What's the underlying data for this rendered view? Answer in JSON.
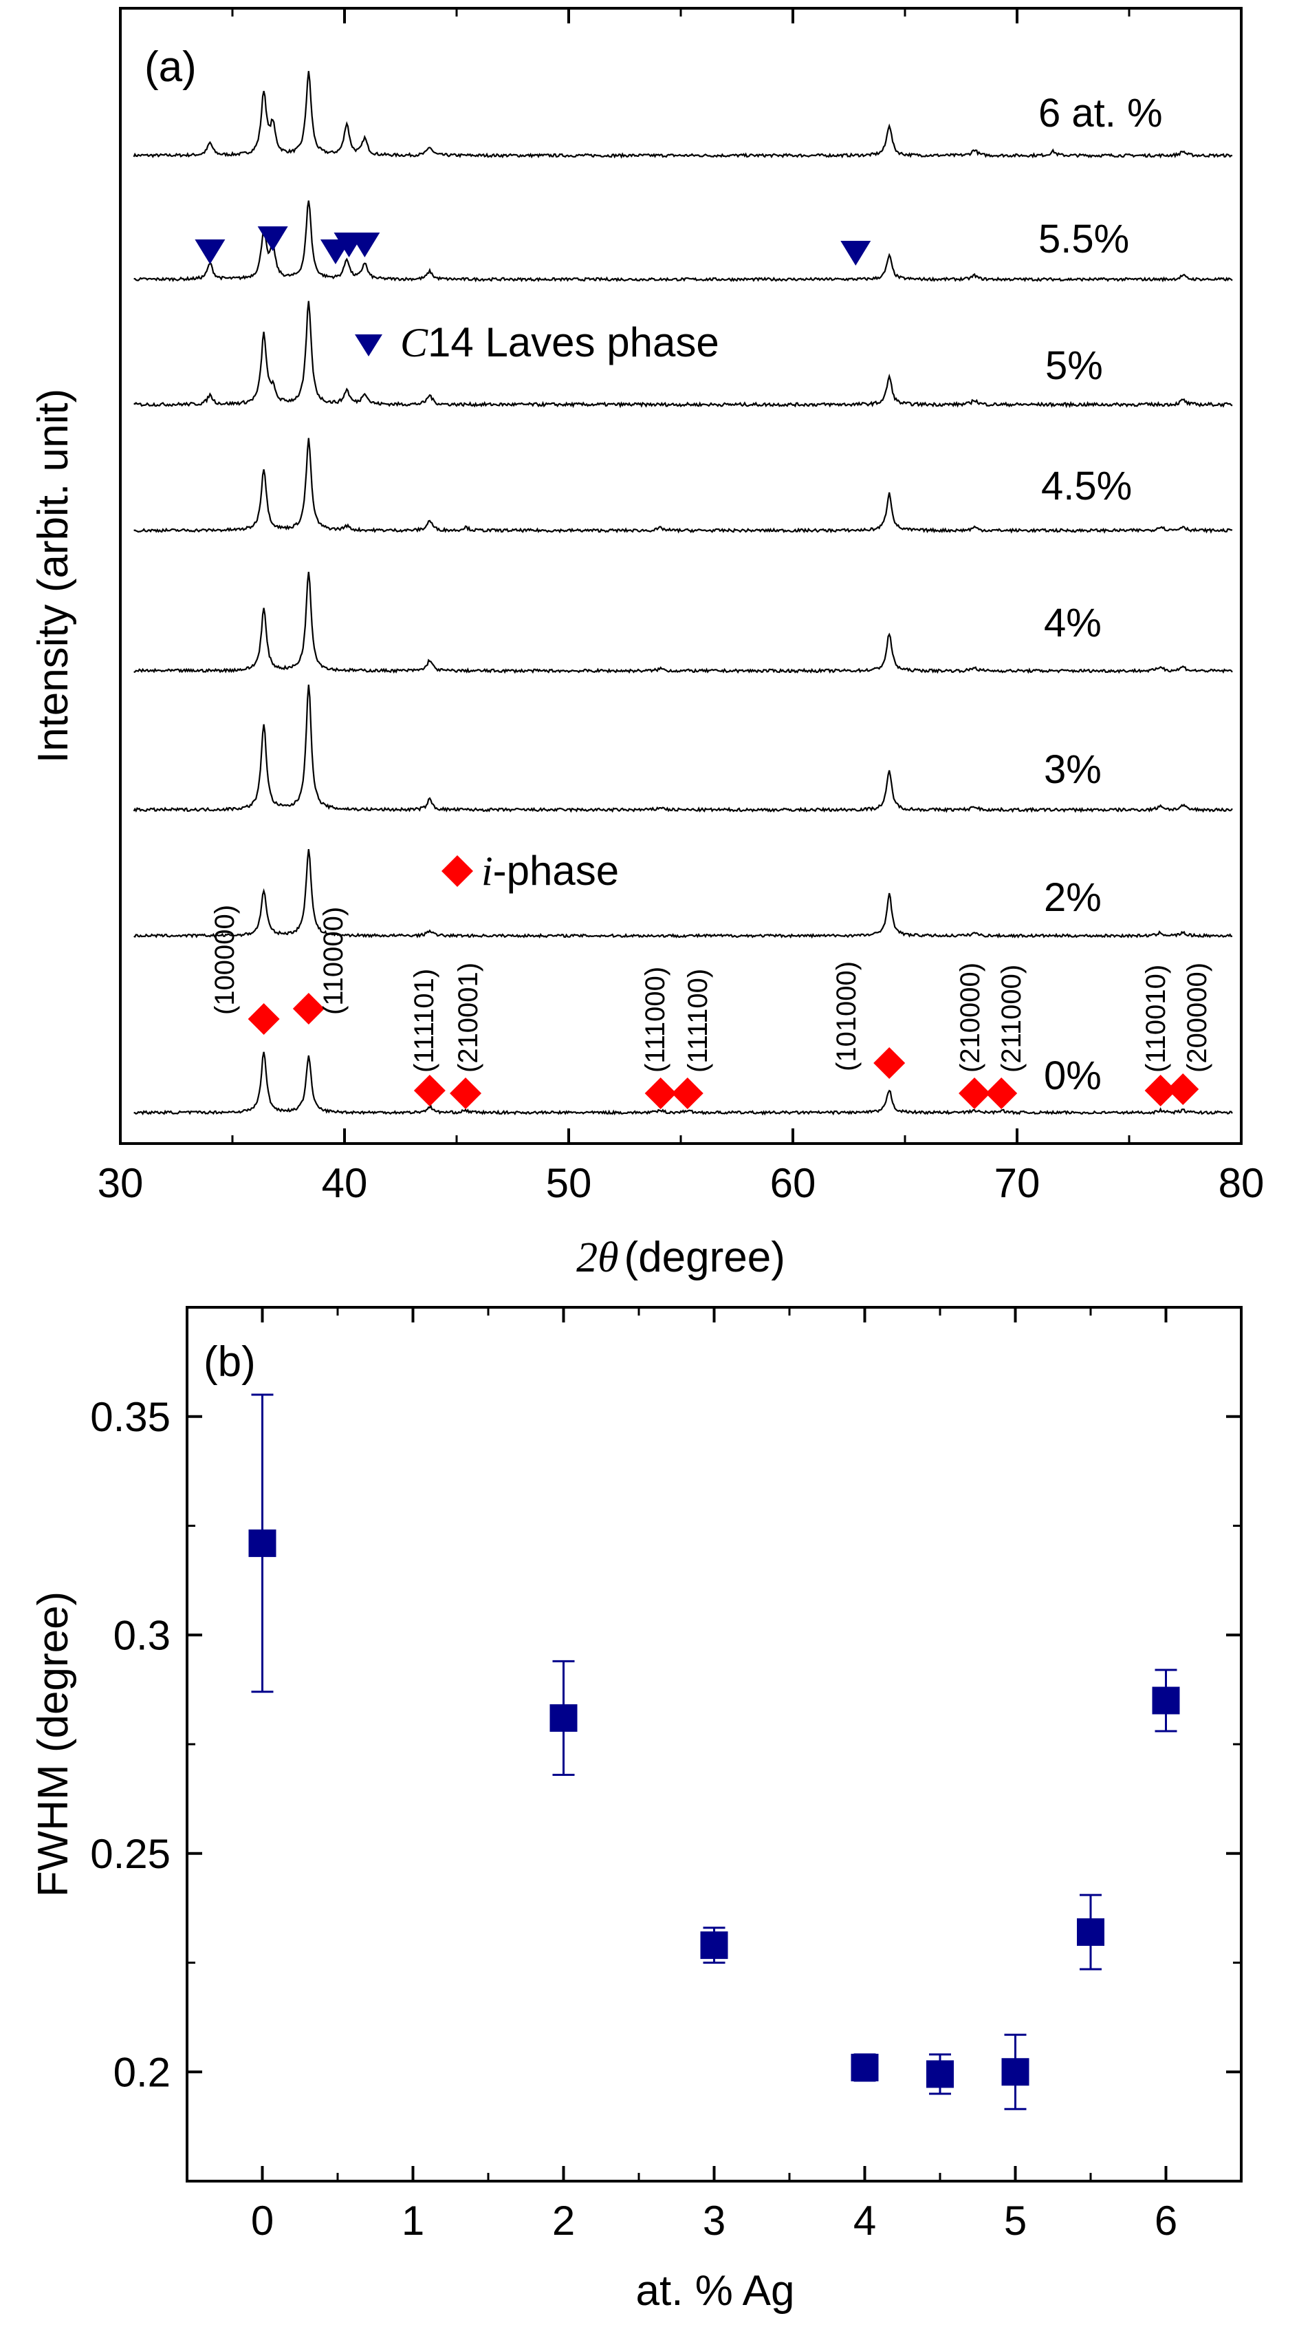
{
  "colors": {
    "ag_trace": "#000000",
    "i_phase_marker": "#ff0000",
    "laves_marker": "#00008b",
    "fwhm_marker": "#00008b"
  },
  "chart_data": [
    {
      "type": "line",
      "panel": "(a)",
      "xlabel_var": "2θ",
      "xlabel_unit": "(degree)",
      "ylabel": "Intensity (arbit. unit)",
      "xlim": [
        30,
        80
      ],
      "x_ticks": [
        30,
        40,
        50,
        60,
        70,
        80
      ],
      "y_ticks": false,
      "series": [
        {
          "name": "6 at. %",
          "peaks": [
            [
              34.0,
              0.15
            ],
            [
              36.4,
              0.75
            ],
            [
              36.8,
              0.35
            ],
            [
              38.4,
              1.0
            ],
            [
              40.1,
              0.38
            ],
            [
              40.9,
              0.2
            ],
            [
              43.8,
              0.1
            ],
            [
              64.3,
              0.37
            ],
            [
              68.1,
              0.07
            ],
            [
              71.6,
              0.05
            ],
            [
              77.4,
              0.05
            ]
          ]
        },
        {
          "name": "5.5%",
          "peaks": [
            [
              34.0,
              0.2
            ],
            [
              36.4,
              0.6
            ],
            [
              36.8,
              0.38
            ],
            [
              38.4,
              1.0
            ],
            [
              40.1,
              0.25
            ],
            [
              40.9,
              0.2
            ],
            [
              43.8,
              0.1
            ],
            [
              64.3,
              0.3
            ],
            [
              68.1,
              0.05
            ],
            [
              77.4,
              0.05
            ]
          ]
        },
        {
          "name": "5%",
          "peaks": [
            [
              34.0,
              0.1
            ],
            [
              36.4,
              0.75
            ],
            [
              36.8,
              0.15
            ],
            [
              38.4,
              1.1
            ],
            [
              40.1,
              0.15
            ],
            [
              40.9,
              0.12
            ],
            [
              43.8,
              0.1
            ],
            [
              64.3,
              0.3
            ],
            [
              68.1,
              0.05
            ],
            [
              77.4,
              0.05
            ]
          ]
        },
        {
          "name": "4.5%",
          "peaks": [
            [
              36.4,
              0.75
            ],
            [
              38.4,
              1.1
            ],
            [
              40.1,
              0.05
            ],
            [
              43.8,
              0.12
            ],
            [
              45.4,
              0.04
            ],
            [
              54.1,
              0.03
            ],
            [
              64.3,
              0.45
            ],
            [
              68.1,
              0.04
            ],
            [
              76.4,
              0.05
            ],
            [
              77.4,
              0.05
            ]
          ]
        },
        {
          "name": "4%",
          "peaks": [
            [
              36.4,
              0.75
            ],
            [
              38.4,
              1.2
            ],
            [
              43.8,
              0.13
            ],
            [
              54.1,
              0.03
            ],
            [
              64.3,
              0.45
            ],
            [
              68.1,
              0.04
            ],
            [
              76.4,
              0.05
            ],
            [
              77.4,
              0.05
            ]
          ]
        },
        {
          "name": "3%",
          "peaks": [
            [
              36.4,
              1.0
            ],
            [
              38.4,
              1.45
            ],
            [
              43.8,
              0.12
            ],
            [
              54.1,
              0.03
            ],
            [
              64.3,
              0.45
            ],
            [
              68.1,
              0.04
            ],
            [
              76.4,
              0.05
            ],
            [
              77.4,
              0.05
            ]
          ]
        },
        {
          "name": "2%",
          "peaks": [
            [
              36.4,
              0.6
            ],
            [
              38.4,
              1.15
            ],
            [
              43.8,
              0.07
            ],
            [
              64.3,
              0.55
            ],
            [
              68.1,
              0.04
            ],
            [
              76.4,
              0.04
            ],
            [
              77.4,
              0.04
            ]
          ]
        },
        {
          "name": "0%",
          "peaks": [
            [
              36.4,
              0.8
            ],
            [
              38.4,
              0.75
            ],
            [
              43.8,
              0.08
            ],
            [
              45.4,
              0.03
            ],
            [
              54.1,
              0.03
            ],
            [
              55.3,
              0.03
            ],
            [
              64.3,
              0.3
            ],
            [
              68.1,
              0.03
            ],
            [
              69.3,
              0.03
            ],
            [
              76.4,
              0.03
            ],
            [
              77.4,
              0.03
            ]
          ]
        }
      ],
      "legend_i_phase_var": "i",
      "legend_i_phase_suffix": "-phase",
      "legend_laves_var": "C",
      "legend_laves_suffix": "14 Laves phase",
      "laves_markers_5_5": [
        34.0,
        36.8,
        39.6,
        40.2,
        40.9,
        62.8
      ],
      "i_phase_markers_0": [
        {
          "x": 36.4,
          "hkl": "(100000)"
        },
        {
          "x": 38.4,
          "hkl": "(110000)"
        },
        {
          "x": 43.8,
          "hkl": "(111101)"
        },
        {
          "x": 45.4,
          "hkl": "(210001)"
        },
        {
          "x": 54.1,
          "hkl": "(111000)"
        },
        {
          "x": 55.3,
          "hkl": "(111100)"
        },
        {
          "x": 64.3,
          "hkl": "(101000)"
        },
        {
          "x": 68.1,
          "hkl": "(210000)"
        },
        {
          "x": 69.3,
          "hkl": "(211000)"
        },
        {
          "x": 76.4,
          "hkl": "(110010)"
        },
        {
          "x": 77.4,
          "hkl": "(200000)"
        }
      ]
    },
    {
      "type": "scatter",
      "panel": "(b)",
      "xlabel": "at. % Ag",
      "ylabel": "FWHM (degree)",
      "xlim": [
        -0.5,
        6.5
      ],
      "ylim": [
        0.175,
        0.375
      ],
      "x_ticks": [
        0,
        1,
        2,
        3,
        4,
        5,
        6
      ],
      "y_ticks": [
        0.2,
        0.25,
        0.3,
        0.35
      ],
      "y_tick_labels": [
        "0.2",
        "0.25",
        "0.3",
        "0.35"
      ],
      "points": [
        {
          "x": 0,
          "y": 0.321,
          "err": 0.034
        },
        {
          "x": 2,
          "y": 0.281,
          "err": 0.013
        },
        {
          "x": 3,
          "y": 0.229,
          "err": 0.004
        },
        {
          "x": 4,
          "y": 0.201,
          "err": 0.003
        },
        {
          "x": 4.5,
          "y": 0.1995,
          "err": 0.0045
        },
        {
          "x": 5,
          "y": 0.2,
          "err": 0.0085
        },
        {
          "x": 5.5,
          "y": 0.232,
          "err": 0.0085
        },
        {
          "x": 6,
          "y": 0.285,
          "err": 0.007
        }
      ]
    }
  ]
}
